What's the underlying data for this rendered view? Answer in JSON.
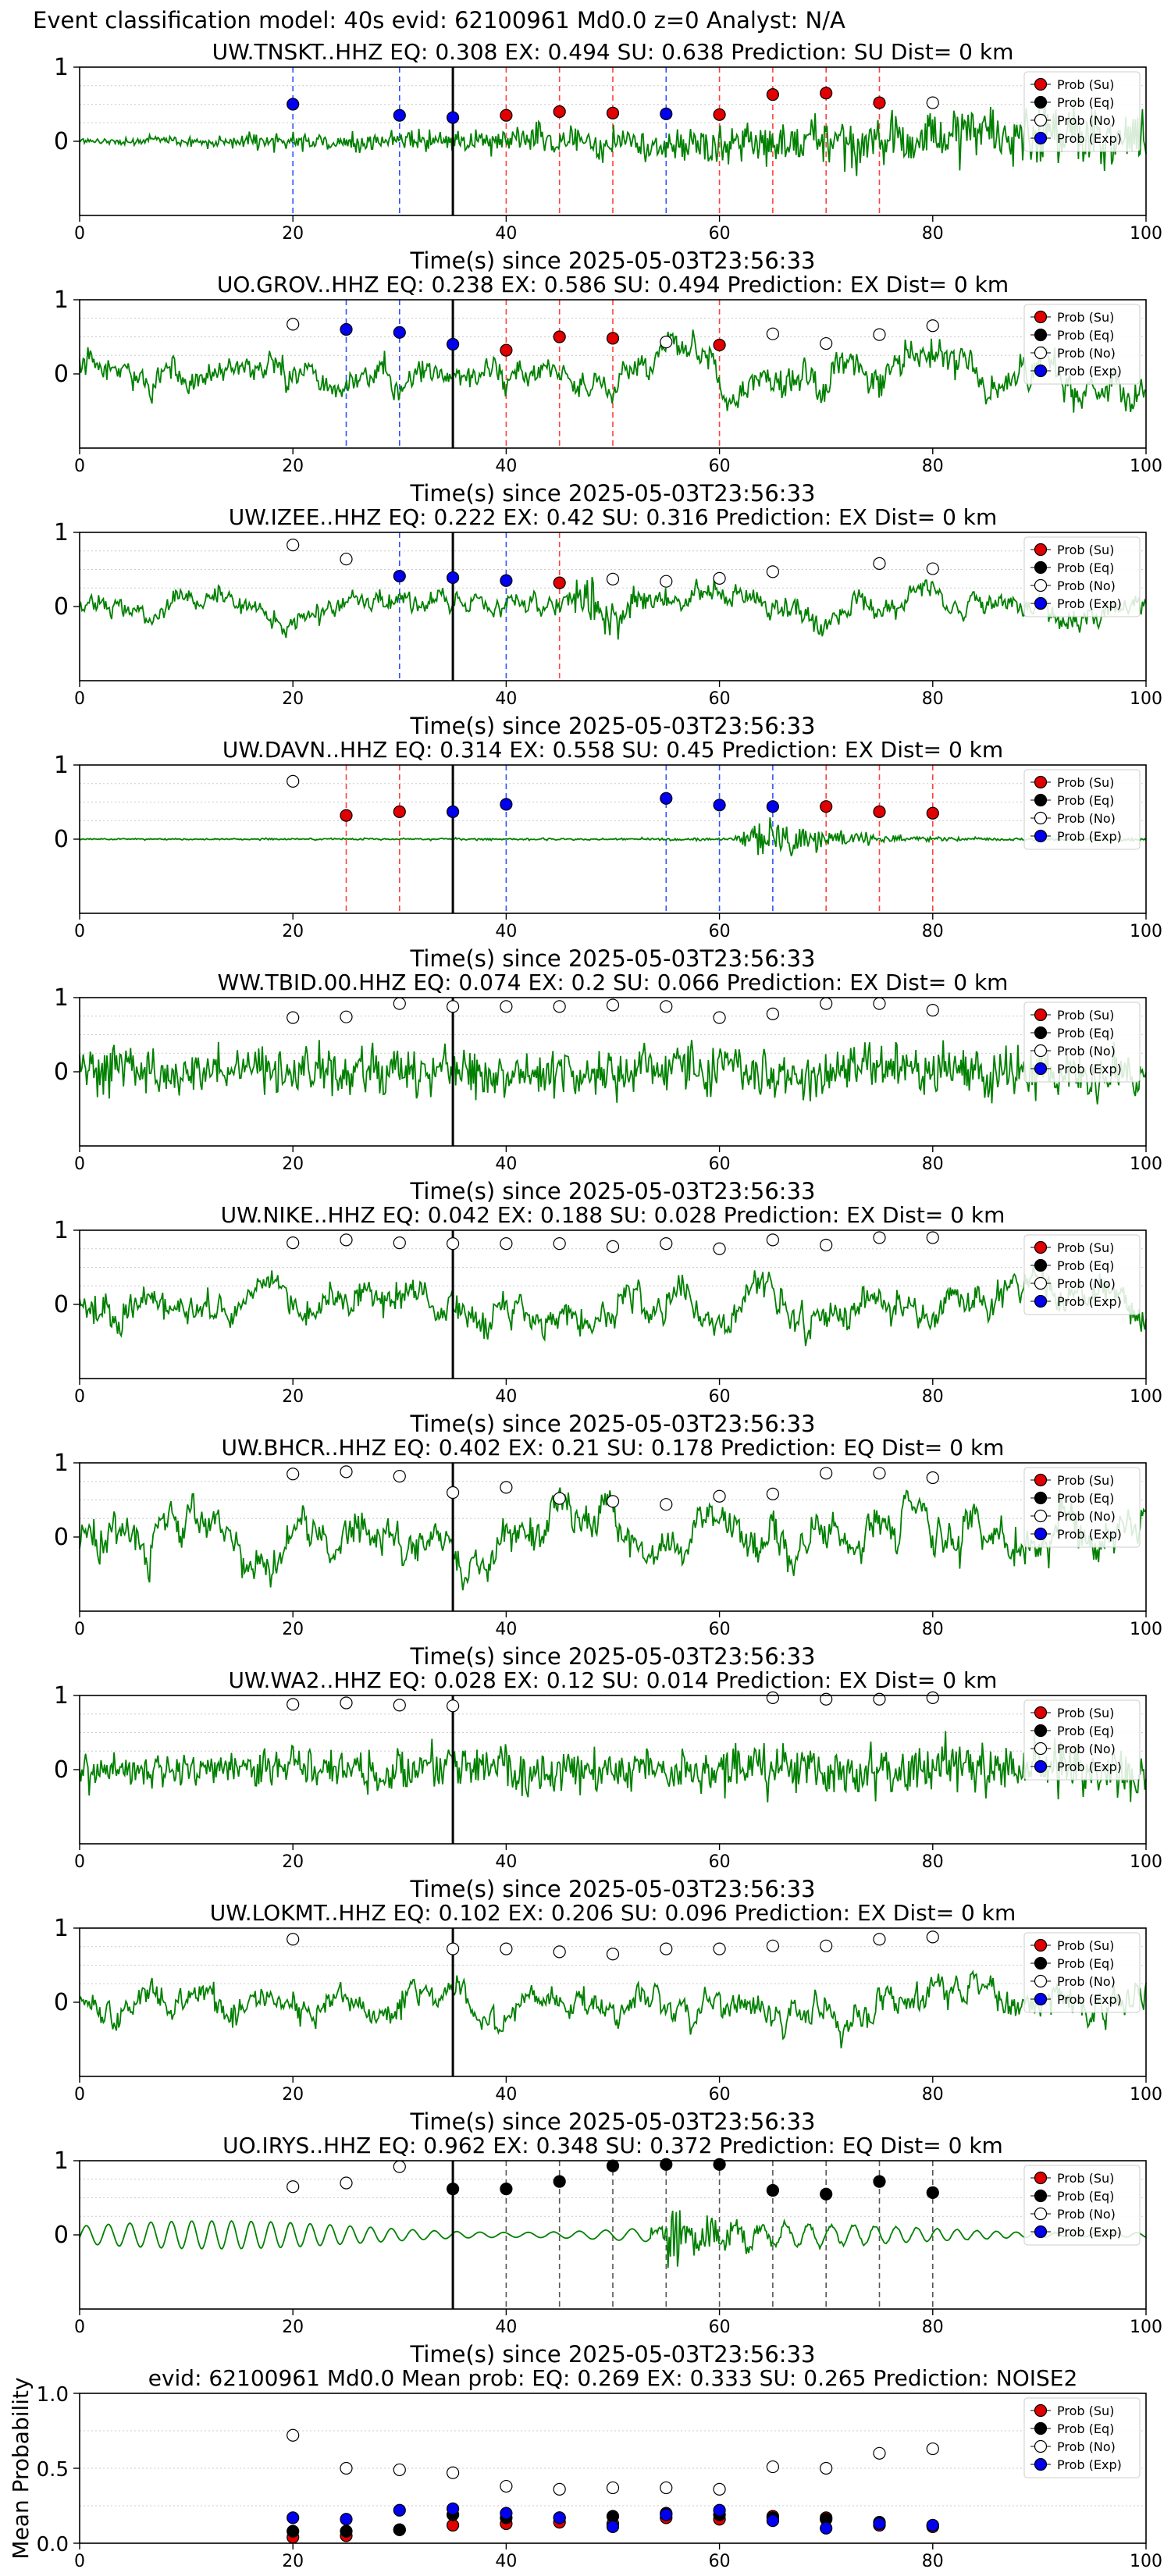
{
  "suptitle": "Event classification model: 40s evid: 62100961 Md0.0 z=0 Analyst: N/A",
  "legend_labels": [
    "Prob (Su)",
    "Prob (Eq)",
    "Prob (No)",
    "Prob (Exp)"
  ],
  "colors": {
    "su": "#e00000",
    "eq": "#000000",
    "no": "#ffffff",
    "exp": "#0000ee",
    "trace": "#008000",
    "grid": "#cccccc"
  },
  "chart_data": [
    {
      "type": "line",
      "station": "UW.TNSKT..HHZ",
      "title": "UW.TNSKT..HHZ   EQ: 0.308  EX: 0.494  SU: 0.638   Prediction: SU    Dist= 0 km",
      "xlabel": "Time(s) since 2025-05-03T23:56:33",
      "ylabel": "",
      "xlim": [
        0,
        100
      ],
      "ylim": [
        -1,
        1
      ],
      "xticks": [
        0,
        20,
        40,
        60,
        80,
        100
      ],
      "yticks": [
        0,
        1
      ],
      "legend": "top-right",
      "trace": {
        "style": "noise_growing",
        "start_amp": 0.08,
        "end_amp": 1.0
      },
      "markers": [
        {
          "x": 20,
          "y": 0.5,
          "cls": "exp"
        },
        {
          "x": 30,
          "y": 0.35,
          "cls": "exp"
        },
        {
          "x": 35,
          "y": 0.32,
          "cls": "exp"
        },
        {
          "x": 40,
          "y": 0.35,
          "cls": "su"
        },
        {
          "x": 45,
          "y": 0.4,
          "cls": "su"
        },
        {
          "x": 50,
          "y": 0.38,
          "cls": "su"
        },
        {
          "x": 55,
          "y": 0.37,
          "cls": "exp"
        },
        {
          "x": 60,
          "y": 0.36,
          "cls": "su"
        },
        {
          "x": 65,
          "y": 0.63,
          "cls": "su"
        },
        {
          "x": 70,
          "y": 0.65,
          "cls": "su"
        },
        {
          "x": 75,
          "y": 0.52,
          "cls": "su"
        },
        {
          "x": 80,
          "y": 0.52,
          "cls": "no"
        }
      ]
    },
    {
      "type": "line",
      "station": "UO.GROV..HHZ",
      "title": "UO.GROV..HHZ   EQ: 0.238  EX: 0.586  SU: 0.494   Prediction: EX    Dist= 0 km",
      "xlabel": "Time(s) since 2025-05-03T23:56:33",
      "ylabel": "",
      "xlim": [
        0,
        100
      ],
      "ylim": [
        -1,
        1
      ],
      "xticks": [
        0,
        20,
        40,
        60,
        80,
        100
      ],
      "yticks": [
        0,
        1
      ],
      "legend": "top-right",
      "trace": {
        "style": "noise_wavy",
        "start_amp": 0.45,
        "end_amp": 0.7
      },
      "markers": [
        {
          "x": 20,
          "y": 0.67,
          "cls": "no"
        },
        {
          "x": 25,
          "y": 0.6,
          "cls": "exp"
        },
        {
          "x": 30,
          "y": 0.56,
          "cls": "exp"
        },
        {
          "x": 35,
          "y": 0.4,
          "cls": "exp"
        },
        {
          "x": 40,
          "y": 0.32,
          "cls": "su"
        },
        {
          "x": 45,
          "y": 0.5,
          "cls": "su"
        },
        {
          "x": 50,
          "y": 0.48,
          "cls": "su"
        },
        {
          "x": 55,
          "y": 0.43,
          "cls": "no"
        },
        {
          "x": 60,
          "y": 0.39,
          "cls": "su"
        },
        {
          "x": 65,
          "y": 0.54,
          "cls": "no"
        },
        {
          "x": 70,
          "y": 0.41,
          "cls": "no"
        },
        {
          "x": 75,
          "y": 0.53,
          "cls": "no"
        },
        {
          "x": 80,
          "y": 0.65,
          "cls": "no"
        }
      ]
    },
    {
      "type": "line",
      "station": "UW.IZEE..HHZ",
      "title": "UW.IZEE..HHZ   EQ: 0.222  EX: 0.42  SU: 0.316   Prediction: EX    Dist= 0 km",
      "xlabel": "Time(s) since 2025-05-03T23:56:33",
      "ylabel": "",
      "xlim": [
        0,
        100
      ],
      "ylim": [
        -1,
        1
      ],
      "xticks": [
        0,
        20,
        40,
        60,
        80,
        100
      ],
      "yticks": [
        0,
        1
      ],
      "legend": "top-right",
      "trace": {
        "style": "noise_wavy_burst",
        "start_amp": 0.35,
        "end_amp": 0.45,
        "burst_at": 46,
        "burst_amp": 0.95
      },
      "markers": [
        {
          "x": 20,
          "y": 0.83,
          "cls": "no"
        },
        {
          "x": 25,
          "y": 0.64,
          "cls": "no"
        },
        {
          "x": 30,
          "y": 0.41,
          "cls": "exp"
        },
        {
          "x": 35,
          "y": 0.39,
          "cls": "exp"
        },
        {
          "x": 40,
          "y": 0.35,
          "cls": "exp"
        },
        {
          "x": 45,
          "y": 0.32,
          "cls": "su"
        },
        {
          "x": 50,
          "y": 0.37,
          "cls": "no"
        },
        {
          "x": 55,
          "y": 0.34,
          "cls": "no"
        },
        {
          "x": 60,
          "y": 0.38,
          "cls": "no"
        },
        {
          "x": 65,
          "y": 0.47,
          "cls": "no"
        },
        {
          "x": 75,
          "y": 0.58,
          "cls": "no"
        },
        {
          "x": 80,
          "y": 0.51,
          "cls": "no"
        }
      ]
    },
    {
      "type": "line",
      "station": "UW.DAVN..HHZ",
      "title": "UW.DAVN..HHZ   EQ: 0.314  EX: 0.558  SU: 0.45   Prediction: EX    Dist= 0 km",
      "xlabel": "Time(s) since 2025-05-03T23:56:33",
      "ylabel": "",
      "xlim": [
        0,
        100
      ],
      "ylim": [
        -1,
        1
      ],
      "xticks": [
        0,
        20,
        40,
        60,
        80,
        100
      ],
      "yticks": [
        0,
        1
      ],
      "legend": "top-right",
      "trace": {
        "style": "quiet_burst",
        "start_amp": 0.02,
        "end_amp": 0.05,
        "burst_at": 63,
        "burst_amp": 0.85
      },
      "markers": [
        {
          "x": 20,
          "y": 0.78,
          "cls": "no"
        },
        {
          "x": 25,
          "y": 0.32,
          "cls": "su"
        },
        {
          "x": 30,
          "y": 0.37,
          "cls": "su"
        },
        {
          "x": 35,
          "y": 0.37,
          "cls": "exp"
        },
        {
          "x": 40,
          "y": 0.47,
          "cls": "exp"
        },
        {
          "x": 55,
          "y": 0.55,
          "cls": "exp"
        },
        {
          "x": 60,
          "y": 0.46,
          "cls": "exp"
        },
        {
          "x": 65,
          "y": 0.44,
          "cls": "exp"
        },
        {
          "x": 70,
          "y": 0.44,
          "cls": "su"
        },
        {
          "x": 75,
          "y": 0.37,
          "cls": "su"
        },
        {
          "x": 80,
          "y": 0.35,
          "cls": "su"
        }
      ]
    },
    {
      "type": "line",
      "station": "WW.TBID.00.HHZ",
      "title": "WW.TBID.00.HHZ   EQ: 0.074  EX: 0.2  SU: 0.066   Prediction: EX    Dist= 0 km",
      "xlabel": "Time(s) since 2025-05-03T23:56:33",
      "ylabel": "",
      "xlim": [
        0,
        100
      ],
      "ylim": [
        -1,
        1
      ],
      "xticks": [
        0,
        20,
        40,
        60,
        80,
        100
      ],
      "yticks": [
        0,
        1
      ],
      "legend": "top-right",
      "trace": {
        "style": "noise",
        "start_amp": 0.7,
        "end_amp": 0.75
      },
      "markers": [
        {
          "x": 20,
          "y": 0.73,
          "cls": "no"
        },
        {
          "x": 25,
          "y": 0.74,
          "cls": "no"
        },
        {
          "x": 30,
          "y": 0.92,
          "cls": "no"
        },
        {
          "x": 35,
          "y": 0.88,
          "cls": "no"
        },
        {
          "x": 40,
          "y": 0.88,
          "cls": "no"
        },
        {
          "x": 45,
          "y": 0.88,
          "cls": "no"
        },
        {
          "x": 50,
          "y": 0.9,
          "cls": "no"
        },
        {
          "x": 55,
          "y": 0.88,
          "cls": "no"
        },
        {
          "x": 60,
          "y": 0.73,
          "cls": "no"
        },
        {
          "x": 65,
          "y": 0.78,
          "cls": "no"
        },
        {
          "x": 70,
          "y": 0.92,
          "cls": "no"
        },
        {
          "x": 75,
          "y": 0.92,
          "cls": "no"
        },
        {
          "x": 80,
          "y": 0.83,
          "cls": "no"
        }
      ]
    },
    {
      "type": "line",
      "station": "UW.NIKE..HHZ",
      "title": "UW.NIKE..HHZ   EQ: 0.042  EX: 0.188  SU: 0.028   Prediction: EX    Dist= 0 km",
      "xlabel": "Time(s) since 2025-05-03T23:56:33",
      "ylabel": "",
      "xlim": [
        0,
        100
      ],
      "ylim": [
        -1,
        1
      ],
      "xticks": [
        0,
        20,
        40,
        60,
        80,
        100
      ],
      "yticks": [
        0,
        1
      ],
      "legend": "top-right",
      "trace": {
        "style": "noise_wavy",
        "start_amp": 0.6,
        "end_amp": 0.6
      },
      "markers": [
        {
          "x": 20,
          "y": 0.83,
          "cls": "no"
        },
        {
          "x": 25,
          "y": 0.87,
          "cls": "no"
        },
        {
          "x": 30,
          "y": 0.83,
          "cls": "no"
        },
        {
          "x": 35,
          "y": 0.82,
          "cls": "no"
        },
        {
          "x": 40,
          "y": 0.82,
          "cls": "no"
        },
        {
          "x": 45,
          "y": 0.82,
          "cls": "no"
        },
        {
          "x": 50,
          "y": 0.78,
          "cls": "no"
        },
        {
          "x": 55,
          "y": 0.82,
          "cls": "no"
        },
        {
          "x": 60,
          "y": 0.75,
          "cls": "no"
        },
        {
          "x": 65,
          "y": 0.87,
          "cls": "no"
        },
        {
          "x": 70,
          "y": 0.8,
          "cls": "no"
        },
        {
          "x": 75,
          "y": 0.9,
          "cls": "no"
        },
        {
          "x": 80,
          "y": 0.9,
          "cls": "no"
        }
      ]
    },
    {
      "type": "line",
      "station": "UW.BHCR..HHZ",
      "title": "UW.BHCR..HHZ   EQ: 0.402  EX: 0.21  SU: 0.178   Prediction: EQ    Dist= 0 km",
      "xlabel": "Time(s) since 2025-05-03T23:56:33",
      "ylabel": "",
      "xlim": [
        0,
        100
      ],
      "ylim": [
        -1,
        1
      ],
      "xticks": [
        0,
        20,
        40,
        60,
        80,
        100
      ],
      "yticks": [
        0,
        1
      ],
      "legend": "top-right",
      "trace": {
        "style": "noise_wavy",
        "start_amp": 0.7,
        "end_amp": 0.7
      },
      "markers": [
        {
          "x": 20,
          "y": 0.85,
          "cls": "no"
        },
        {
          "x": 25,
          "y": 0.88,
          "cls": "no"
        },
        {
          "x": 30,
          "y": 0.82,
          "cls": "no"
        },
        {
          "x": 35,
          "y": 0.6,
          "cls": "no"
        },
        {
          "x": 40,
          "y": 0.67,
          "cls": "no"
        },
        {
          "x": 45,
          "y": 0.52,
          "cls": "no"
        },
        {
          "x": 50,
          "y": 0.48,
          "cls": "no"
        },
        {
          "x": 55,
          "y": 0.44,
          "cls": "no"
        },
        {
          "x": 60,
          "y": 0.55,
          "cls": "no"
        },
        {
          "x": 65,
          "y": 0.58,
          "cls": "no"
        },
        {
          "x": 70,
          "y": 0.86,
          "cls": "no"
        },
        {
          "x": 75,
          "y": 0.86,
          "cls": "no"
        },
        {
          "x": 80,
          "y": 0.8,
          "cls": "no"
        }
      ]
    },
    {
      "type": "line",
      "station": "UW.WA2..HHZ",
      "title": "UW.WA2..HHZ   EQ: 0.028  EX: 0.12  SU: 0.014   Prediction: EX    Dist= 0 km",
      "xlabel": "Time(s) since 2025-05-03T23:56:33",
      "ylabel": "",
      "xlim": [
        0,
        100
      ],
      "ylim": [
        -1,
        1
      ],
      "xticks": [
        0,
        20,
        40,
        60,
        80,
        100
      ],
      "yticks": [
        0,
        1
      ],
      "legend": "top-right",
      "trace": {
        "style": "noise",
        "start_amp": 0.55,
        "end_amp": 0.85
      },
      "markers": [
        {
          "x": 20,
          "y": 0.88,
          "cls": "no"
        },
        {
          "x": 25,
          "y": 0.9,
          "cls": "no"
        },
        {
          "x": 30,
          "y": 0.87,
          "cls": "no"
        },
        {
          "x": 35,
          "y": 0.86,
          "cls": "no"
        },
        {
          "x": 65,
          "y": 0.97,
          "cls": "no"
        },
        {
          "x": 70,
          "y": 0.95,
          "cls": "no"
        },
        {
          "x": 75,
          "y": 0.95,
          "cls": "no"
        },
        {
          "x": 80,
          "y": 0.97,
          "cls": "no"
        }
      ]
    },
    {
      "type": "line",
      "station": "UW.LOKMT..HHZ",
      "title": "UW.LOKMT..HHZ   EQ: 0.102  EX: 0.206  SU: 0.096   Prediction: EX    Dist= 0 km",
      "xlabel": "Time(s) since 2025-05-03T23:56:33",
      "ylabel": "",
      "xlim": [
        0,
        100
      ],
      "ylim": [
        -1,
        1
      ],
      "xticks": [
        0,
        20,
        40,
        60,
        80,
        100
      ],
      "yticks": [
        0,
        1
      ],
      "legend": "top-right",
      "trace": {
        "style": "noise_wavy",
        "start_amp": 0.5,
        "end_amp": 0.6
      },
      "markers": [
        {
          "x": 20,
          "y": 0.85,
          "cls": "no"
        },
        {
          "x": 35,
          "y": 0.72,
          "cls": "no"
        },
        {
          "x": 40,
          "y": 0.72,
          "cls": "no"
        },
        {
          "x": 45,
          "y": 0.68,
          "cls": "no"
        },
        {
          "x": 50,
          "y": 0.65,
          "cls": "no"
        },
        {
          "x": 55,
          "y": 0.72,
          "cls": "no"
        },
        {
          "x": 60,
          "y": 0.72,
          "cls": "no"
        },
        {
          "x": 65,
          "y": 0.76,
          "cls": "no"
        },
        {
          "x": 70,
          "y": 0.76,
          "cls": "no"
        },
        {
          "x": 75,
          "y": 0.85,
          "cls": "no"
        },
        {
          "x": 80,
          "y": 0.88,
          "cls": "no"
        }
      ]
    },
    {
      "type": "line",
      "station": "UO.IRYS..HHZ",
      "title": "UO.IRYS..HHZ   EQ: 0.962  EX: 0.348  SU: 0.372   Prediction: EQ    Dist= 0 km",
      "xlabel": "Time(s) since 2025-05-03T23:56:33",
      "ylabel": "",
      "xlim": [
        0,
        100
      ],
      "ylim": [
        -1,
        1
      ],
      "xticks": [
        0,
        20,
        40,
        60,
        80,
        100
      ],
      "yticks": [
        0,
        1
      ],
      "legend": "top-right",
      "trace": {
        "style": "smooth_wave",
        "start_amp": 0.2,
        "end_amp": 0.12,
        "burst_at": 55,
        "burst_amp": 0.9
      },
      "markers": [
        {
          "x": 20,
          "y": 0.65,
          "cls": "no"
        },
        {
          "x": 25,
          "y": 0.7,
          "cls": "no"
        },
        {
          "x": 30,
          "y": 0.92,
          "cls": "no"
        },
        {
          "x": 35,
          "y": 0.62,
          "cls": "eq"
        },
        {
          "x": 40,
          "y": 0.62,
          "cls": "eq"
        },
        {
          "x": 45,
          "y": 0.72,
          "cls": "eq"
        },
        {
          "x": 50,
          "y": 0.93,
          "cls": "eq"
        },
        {
          "x": 55,
          "y": 0.95,
          "cls": "eq"
        },
        {
          "x": 60,
          "y": 0.95,
          "cls": "eq"
        },
        {
          "x": 65,
          "y": 0.6,
          "cls": "eq"
        },
        {
          "x": 70,
          "y": 0.55,
          "cls": "eq"
        },
        {
          "x": 75,
          "y": 0.72,
          "cls": "eq"
        },
        {
          "x": 80,
          "y": 0.57,
          "cls": "eq"
        }
      ]
    },
    {
      "type": "scatter",
      "station": "",
      "title": "evid: 62100961  Md0.0   Mean prob:   EQ: 0.269  EX: 0.333  SU: 0.265   Prediction: NOISE2",
      "xlabel": "",
      "ylabel": "Mean Probability",
      "xlim": [
        0,
        100
      ],
      "ylim": [
        0,
        1
      ],
      "xticks": [
        0,
        20,
        40,
        60,
        80,
        100
      ],
      "yticks": [
        0.0,
        0.5,
        1.0
      ],
      "legend": "top-right",
      "series": [
        {
          "name": "Prob (Su)",
          "cls": "su",
          "x": [
            20,
            25,
            30,
            35,
            40,
            45,
            50,
            55,
            60,
            65,
            70,
            75,
            80
          ],
          "y": [
            0.04,
            0.05,
            0.09,
            0.12,
            0.13,
            0.14,
            0.13,
            0.17,
            0.16,
            0.18,
            0.17,
            0.12,
            0.11
          ]
        },
        {
          "name": "Prob (Eq)",
          "cls": "eq",
          "x": [
            20,
            25,
            30,
            35,
            40,
            45,
            50,
            55,
            60,
            65,
            70,
            75,
            80
          ],
          "y": [
            0.08,
            0.08,
            0.09,
            0.19,
            0.17,
            0.17,
            0.18,
            0.2,
            0.19,
            0.17,
            0.16,
            0.14,
            0.12
          ]
        },
        {
          "name": "Prob (No)",
          "cls": "no",
          "x": [
            20,
            25,
            30,
            35,
            40,
            45,
            50,
            55,
            60,
            65,
            70,
            75,
            80
          ],
          "y": [
            0.72,
            0.5,
            0.49,
            0.47,
            0.38,
            0.36,
            0.37,
            0.37,
            0.36,
            0.51,
            0.5,
            0.6,
            0.63
          ]
        },
        {
          "name": "Prob (Exp)",
          "cls": "exp",
          "x": [
            20,
            25,
            30,
            35,
            40,
            45,
            50,
            55,
            60,
            65,
            70,
            75,
            80
          ],
          "y": [
            0.17,
            0.16,
            0.22,
            0.23,
            0.2,
            0.17,
            0.11,
            0.19,
            0.22,
            0.15,
            0.1,
            0.13,
            0.12
          ]
        }
      ]
    }
  ]
}
